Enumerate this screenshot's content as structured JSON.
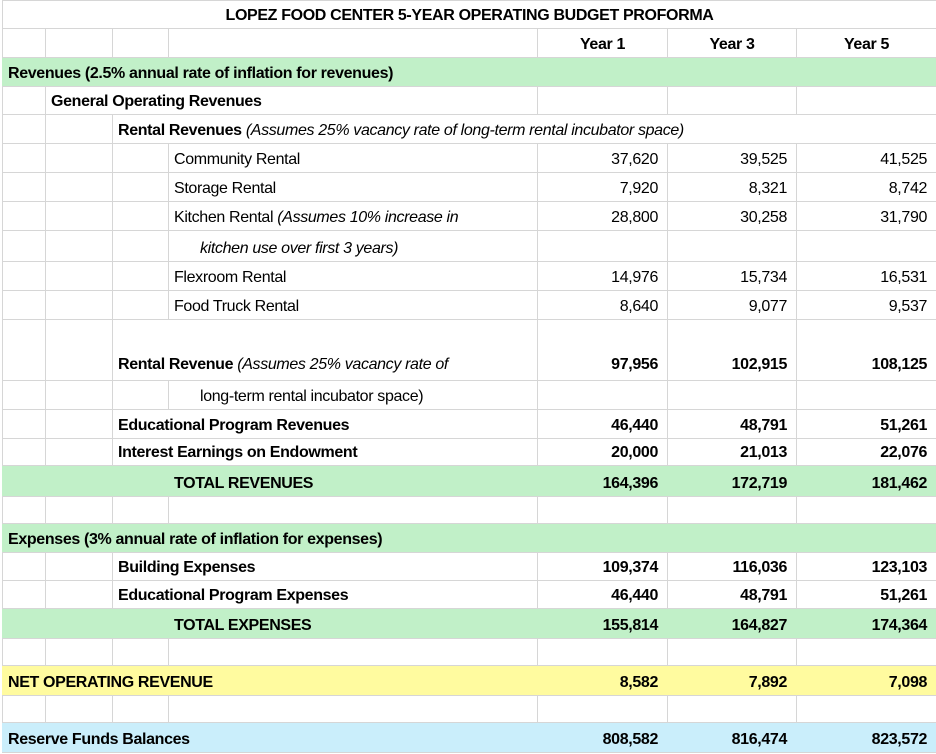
{
  "title": "LOPEZ FOOD CENTER 5-YEAR OPERATING BUDGET PROFORMA",
  "columns": [
    "Year 1",
    "Year 3",
    "Year 5"
  ],
  "colors": {
    "section_fill": "#c1f0c8",
    "net_fill": "#fffb9f",
    "reserve_fill": "#caeefb"
  },
  "revenues": {
    "header": "Revenues (2.5% annual rate of inflation for revenues)",
    "general": "General Operating Revenues",
    "rental_header": {
      "label": "Rental Revenues",
      "note": "(Assumes 25% vacancy rate of long-term rental incubator space)"
    },
    "items": [
      {
        "label": "Community Rental",
        "values": [
          "37,620",
          "39,525",
          "41,525"
        ]
      },
      {
        "label": "Storage Rental",
        "values": [
          "7,920",
          "8,321",
          "8,742"
        ]
      },
      {
        "label": "Kitchen Rental",
        "note": "(Assumes 10% increase in",
        "note_cont": "kitchen use over first 3 years)",
        "values": [
          "28,800",
          "30,258",
          "31,790"
        ]
      },
      {
        "label": "Flexroom Rental",
        "values": [
          "14,976",
          "15,734",
          "16,531"
        ]
      },
      {
        "label": "Food Truck Rental",
        "values": [
          "8,640",
          "9,077",
          "9,537"
        ]
      }
    ],
    "rental_total": {
      "label": "Rental Revenue",
      "note": "(Assumes 25% vacancy rate of",
      "note_cont": "long-term rental incubator space)",
      "values": [
        "97,956",
        "102,915",
        "108,125"
      ]
    },
    "educational": {
      "label": "Educational Program Revenues",
      "values": [
        "46,440",
        "48,791",
        "51,261"
      ]
    },
    "interest": {
      "label": "Interest Earnings on Endowment",
      "values": [
        "20,000",
        "21,013",
        "22,076"
      ]
    },
    "total": {
      "label": "TOTAL REVENUES",
      "values": [
        "164,396",
        "172,719",
        "181,462"
      ]
    }
  },
  "expenses": {
    "header": "Expenses (3% annual rate of inflation for expenses)",
    "building": {
      "label": "Building Expenses",
      "values": [
        "109,374",
        "116,036",
        "123,103"
      ]
    },
    "educational": {
      "label": "Educational Program Expenses",
      "values": [
        "46,440",
        "48,791",
        "51,261"
      ]
    },
    "total": {
      "label": "TOTAL EXPENSES",
      "values": [
        "155,814",
        "164,827",
        "174,364"
      ]
    }
  },
  "net": {
    "label": "NET OPERATING REVENUE",
    "values": [
      "8,582",
      "7,892",
      "7,098"
    ]
  },
  "reserve": {
    "label": "Reserve Funds Balances",
    "values": [
      "808,582",
      "816,474",
      "823,572"
    ]
  }
}
